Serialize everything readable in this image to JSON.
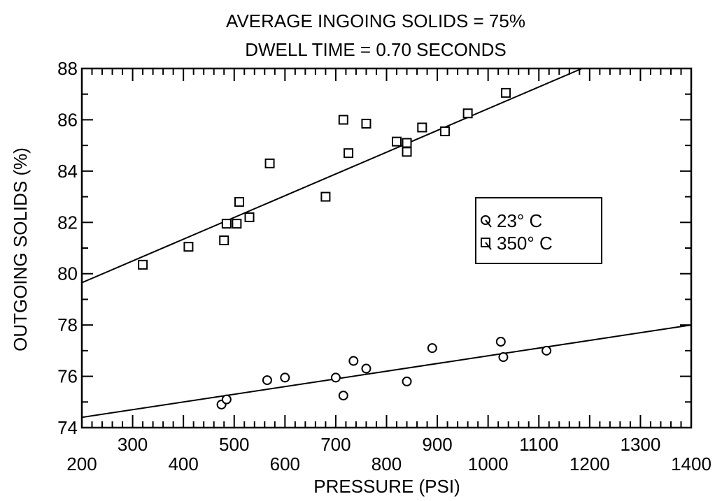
{
  "chart_data": {
    "type": "scatter",
    "title": "AVERAGE INGOING SOLIDS = 75%",
    "subtitle": "DWELL TIME = 0.70 SECONDS",
    "xlabel": "PRESSURE (PSI)",
    "ylabel": "OUTGOING SOLIDS (%)",
    "xlim": [
      200,
      1400
    ],
    "ylim": [
      74,
      88
    ],
    "x_ticks_lower": [
      "200",
      "400",
      "600",
      "800",
      "1000",
      "1200",
      "1400"
    ],
    "x_ticks_upper": [
      "300",
      "500",
      "700",
      "900",
      "1100",
      "1300"
    ],
    "y_ticks": [
      "74",
      "76",
      "78",
      "80",
      "82",
      "84",
      "86",
      "88"
    ],
    "grid": false,
    "legend": {
      "position": "right",
      "entries": [
        "23° C",
        "350° C"
      ]
    },
    "series": [
      {
        "name": "23° C",
        "marker": "circle",
        "points": [
          [
            475,
            74.9
          ],
          [
            485,
            75.1
          ],
          [
            565,
            75.85
          ],
          [
            600,
            75.95
          ],
          [
            700,
            75.95
          ],
          [
            715,
            75.25
          ],
          [
            735,
            76.6
          ],
          [
            760,
            76.3
          ],
          [
            840,
            75.8
          ],
          [
            890,
            77.1
          ],
          [
            1025,
            77.35
          ],
          [
            1030,
            76.75
          ],
          [
            1115,
            77.0
          ]
        ],
        "fit": [
          [
            200,
            74.4
          ],
          [
            1400,
            78.0
          ]
        ]
      },
      {
        "name": "350° C",
        "marker": "square",
        "points": [
          [
            320,
            80.35
          ],
          [
            410,
            81.05
          ],
          [
            480,
            81.3
          ],
          [
            485,
            81.95
          ],
          [
            505,
            81.95
          ],
          [
            510,
            82.8
          ],
          [
            530,
            82.2
          ],
          [
            570,
            84.3
          ],
          [
            680,
            83.0
          ],
          [
            715,
            86.0
          ],
          [
            725,
            84.7
          ],
          [
            760,
            85.85
          ],
          [
            820,
            85.15
          ],
          [
            840,
            85.1
          ],
          [
            840,
            84.75
          ],
          [
            870,
            85.7
          ],
          [
            915,
            85.55
          ],
          [
            960,
            86.25
          ],
          [
            1035,
            87.05
          ]
        ],
        "fit": [
          [
            200,
            79.65
          ],
          [
            1185,
            88.0
          ]
        ]
      }
    ]
  }
}
